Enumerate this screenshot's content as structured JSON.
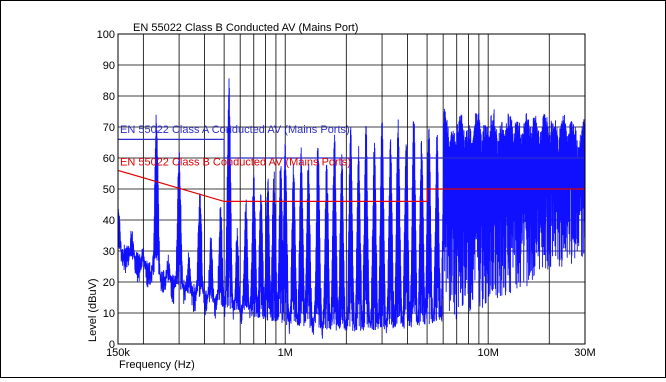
{
  "chart_data": {
    "type": "line",
    "title": "EN 55022 Class B Conducted AV (Mains Port)",
    "xlabel": "Frequency (Hz)",
    "ylabel": "Level (dBuV)",
    "x_scale": "log",
    "xlim": [
      150000,
      30000000
    ],
    "ylim": [
      0,
      100
    ],
    "grid": true,
    "x_tick_labels": [
      {
        "value": 150000,
        "label": "150k"
      },
      {
        "value": 1000000,
        "label": "1M"
      },
      {
        "value": 10000000,
        "label": "10M"
      },
      {
        "value": 30000000,
        "label": "30M"
      }
    ],
    "y_ticks": [
      0,
      10,
      20,
      30,
      40,
      50,
      60,
      70,
      80,
      90,
      100
    ],
    "y_tick_labels": [
      "0",
      "10",
      "20",
      "30",
      "40",
      "50",
      "60",
      "70",
      "80",
      "90",
      "100"
    ],
    "limits": [
      {
        "name": "EN 55022 Class A Conducted AV (Mains Ports)",
        "color": "#2c2cc8",
        "points": [
          [
            150000,
            66
          ],
          [
            500000,
            66
          ],
          [
            500000,
            60
          ],
          [
            30000000,
            60
          ]
        ]
      },
      {
        "name": "EN 55022 Class B Conducted AV (Mains Ports)",
        "color": "#e00000",
        "points": [
          [
            150000,
            56
          ],
          [
            500000,
            46
          ],
          [
            5000000,
            46
          ],
          [
            5000000,
            50
          ],
          [
            30000000,
            50
          ]
        ]
      }
    ],
    "series": [
      {
        "color": "#1010ff",
        "peaks": [
          [
            150000,
            48
          ],
          [
            175000,
            38
          ],
          [
            200000,
            33
          ],
          [
            232000,
            76
          ],
          [
            265000,
            30
          ],
          [
            300000,
            64
          ],
          [
            335000,
            30
          ],
          [
            380000,
            52
          ],
          [
            430000,
            36
          ],
          [
            480000,
            46
          ],
          [
            528000,
            86
          ],
          [
            580000,
            38
          ],
          [
            640000,
            48
          ],
          [
            700000,
            57
          ],
          [
            760000,
            52
          ],
          [
            820000,
            55
          ],
          [
            880000,
            58
          ],
          [
            950000,
            60
          ],
          [
            1000000,
            65
          ],
          [
            1100000,
            60
          ],
          [
            1200000,
            64
          ],
          [
            1300000,
            60
          ],
          [
            1450000,
            67
          ],
          [
            1600000,
            60
          ],
          [
            1750000,
            69
          ],
          [
            1900000,
            62
          ],
          [
            2100000,
            71
          ],
          [
            2300000,
            64
          ],
          [
            2500000,
            72
          ],
          [
            2750000,
            66
          ],
          [
            3000000,
            74
          ],
          [
            3300000,
            67
          ],
          [
            3600000,
            74
          ],
          [
            3950000,
            68
          ],
          [
            4300000,
            75
          ],
          [
            4700000,
            68
          ],
          [
            5100000,
            74
          ],
          [
            5600000,
            69
          ],
          [
            6100000,
            76
          ],
          [
            6700000,
            70
          ],
          [
            7300000,
            75
          ],
          [
            8000000,
            71
          ],
          [
            8800000,
            76
          ],
          [
            9700000,
            72
          ],
          [
            10600000,
            76
          ],
          [
            11600000,
            72
          ],
          [
            12700000,
            75
          ],
          [
            14000000,
            74
          ],
          [
            15500000,
            75
          ],
          [
            17000000,
            74
          ],
          [
            19000000,
            75
          ],
          [
            21000000,
            74
          ],
          [
            23500000,
            75
          ],
          [
            26000000,
            73
          ],
          [
            30000000,
            74
          ]
        ],
        "floor": [
          [
            150000,
            30
          ],
          [
            250000,
            20
          ],
          [
            400000,
            14
          ],
          [
            600000,
            10
          ],
          [
            1000000,
            6
          ],
          [
            2000000,
            4
          ],
          [
            4000000,
            5
          ],
          [
            7000000,
            8
          ],
          [
            10000000,
            12
          ],
          [
            15000000,
            18
          ],
          [
            20000000,
            22
          ],
          [
            30000000,
            28
          ]
        ]
      }
    ]
  }
}
